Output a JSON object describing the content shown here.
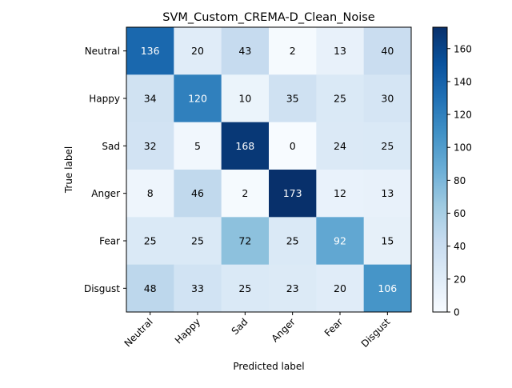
{
  "chart_data": {
    "type": "heatmap",
    "title": "SVM_Custom_CREMA-D_Clean_Noise",
    "xlabel": "Predicted label",
    "ylabel": "True label",
    "x_categories": [
      "Neutral",
      "Happy",
      "Sad",
      "Anger",
      "Fear",
      "Disgust"
    ],
    "y_categories": [
      "Neutral",
      "Happy",
      "Sad",
      "Anger",
      "Fear",
      "Disgust"
    ],
    "values": [
      [
        136,
        20,
        43,
        2,
        13,
        40
      ],
      [
        34,
        120,
        10,
        35,
        25,
        30
      ],
      [
        32,
        5,
        168,
        0,
        24,
        25
      ],
      [
        8,
        46,
        2,
        173,
        12,
        13
      ],
      [
        25,
        25,
        72,
        25,
        92,
        15
      ],
      [
        48,
        33,
        25,
        23,
        20,
        106
      ]
    ],
    "colormap": "Blues",
    "color_range": [
      0,
      173
    ],
    "colorbar_ticks": [
      0,
      20,
      40,
      60,
      80,
      100,
      120,
      140,
      160
    ],
    "text_color_light": "#ffffff",
    "text_color_dark": "#000000"
  }
}
